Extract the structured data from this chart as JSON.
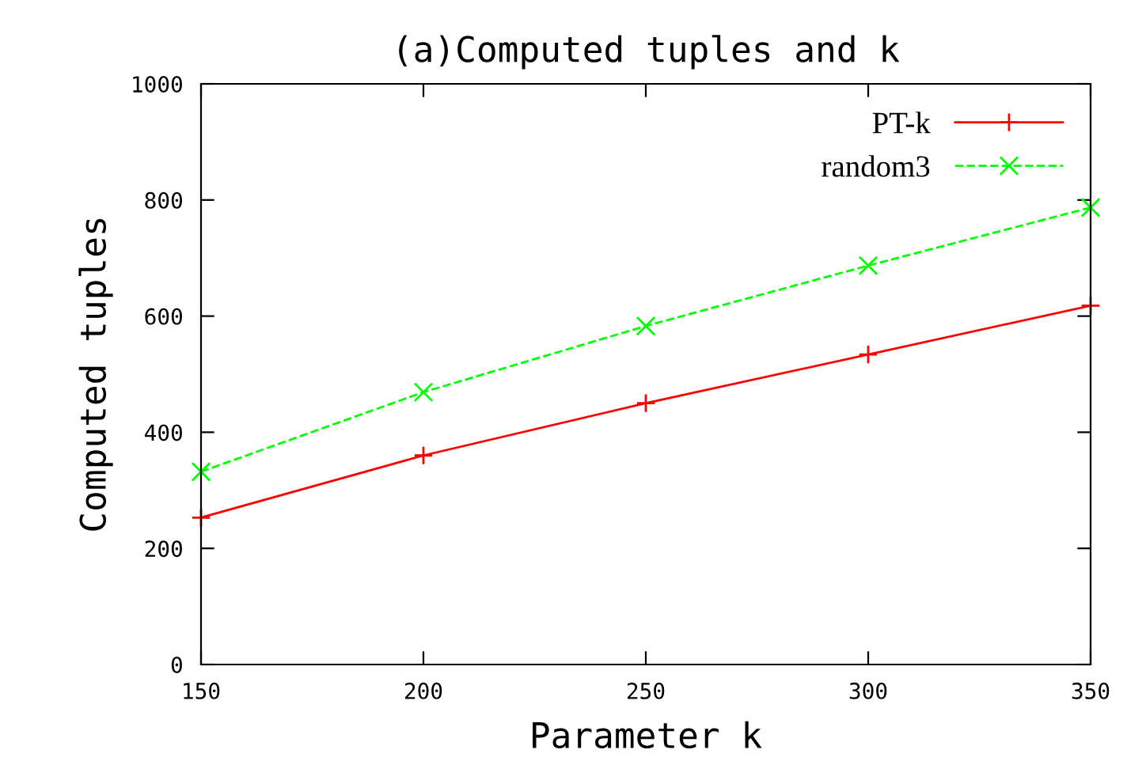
{
  "chart_data": {
    "type": "line",
    "title": "(a)Computed tuples and k",
    "xlabel": "Parameter k",
    "ylabel": "Computed tuples",
    "x": [
      150,
      200,
      250,
      300,
      350
    ],
    "series": [
      {
        "name": "PT-k",
        "color": "#ff0000",
        "values": [
          253,
          360,
          450,
          534,
          618
        ],
        "marker": "plus",
        "line_style": "solid"
      },
      {
        "name": "random3",
        "color": "#00ff00",
        "values": [
          332,
          469,
          583,
          687,
          787
        ],
        "marker": "cross",
        "line_style": "dashed"
      }
    ],
    "xlim": [
      150,
      350
    ],
    "xticks": [
      150,
      200,
      250,
      300,
      350
    ],
    "ylim": [
      0,
      1000
    ],
    "yticks": [
      0,
      200,
      400,
      600,
      800,
      1000
    ],
    "grid": false,
    "legend": "top right"
  }
}
